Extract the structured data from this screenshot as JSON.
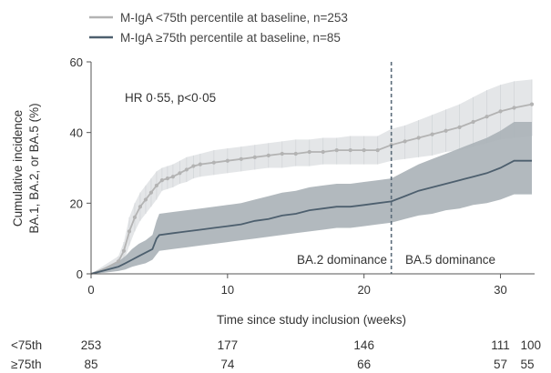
{
  "chart_data": {
    "type": "line",
    "title": "",
    "xlabel": "Time since study inclusion (weeks)",
    "ylabel_line1": "Cumulative incidence",
    "ylabel_line2": "BA.1, BA.2, or BA.5 (%)",
    "xlim": [
      0,
      32.5
    ],
    "ylim": [
      0,
      60
    ],
    "xticks": [
      0,
      10,
      20,
      30
    ],
    "yticks": [
      0,
      20,
      40,
      60
    ],
    "grid": false,
    "legend_position": "top-left",
    "annotation": "HR 0·55, p<0·05",
    "dominance_boundary_x": 22,
    "region_labels": [
      "BA.2 dominance",
      "BA.5 dominance"
    ],
    "series": [
      {
        "name": "M-IgA <75th percentile at baseline, n=253",
        "color": "#b3b3b3",
        "band_color": "#e3e5e7",
        "x": [
          0,
          1,
          2,
          2.4,
          2.8,
          3.2,
          3.6,
          4,
          4.4,
          4.8,
          5.2,
          5.6,
          6,
          6.5,
          7,
          7.5,
          8,
          9,
          10,
          11,
          12,
          13,
          14,
          15,
          16,
          17,
          18,
          19,
          20,
          21,
          22,
          23,
          24,
          25,
          26,
          27,
          28,
          29,
          30,
          31,
          32.3
        ],
        "y": [
          0,
          1.5,
          3.5,
          6.5,
          12,
          16,
          19,
          21,
          23,
          25,
          26.5,
          27,
          27.5,
          28.5,
          29.5,
          30.5,
          31,
          31.5,
          32,
          32.5,
          33,
          33.5,
          34,
          34,
          34.5,
          34.5,
          35,
          35,
          35,
          35,
          36.5,
          37.5,
          38.5,
          39.5,
          40.5,
          41.5,
          43,
          44.5,
          46,
          47,
          48
        ],
        "lower": [
          0,
          0.5,
          2,
          3.5,
          8,
          12,
          15,
          17,
          19,
          21,
          23.5,
          24,
          24.5,
          25.5,
          26,
          27,
          27.5,
          28,
          28.5,
          29,
          29.5,
          30,
          30,
          30.5,
          30.5,
          31,
          31,
          31,
          31,
          31,
          32,
          32.5,
          33,
          33.5,
          34.5,
          35,
          36,
          37,
          38,
          38.5,
          39
        ],
        "upper": [
          0,
          2.5,
          5,
          9,
          16,
          20,
          23,
          25,
          27,
          29,
          30,
          30.5,
          31,
          32,
          33,
          33.5,
          34,
          35,
          35.5,
          36,
          36.5,
          37,
          37.5,
          38,
          38,
          38.5,
          38.5,
          39,
          39,
          39,
          41,
          42,
          43.5,
          45,
          46.5,
          48,
          50,
          52,
          53.5,
          54.5,
          55
        ]
      },
      {
        "name": "M-IgA ≥75th percentile at baseline, n=85",
        "color": "#4d5f6e",
        "band_color": "#aab1b7",
        "x": [
          0,
          1,
          2,
          2.5,
          3,
          3.5,
          4,
          4.5,
          4.8,
          5,
          6,
          7,
          8,
          9,
          10,
          11,
          12,
          13,
          14,
          15,
          16,
          17,
          18,
          19,
          20,
          21,
          22,
          23,
          24,
          25,
          26,
          27,
          28,
          29,
          30,
          31,
          32.3
        ],
        "y": [
          0,
          1,
          2,
          3,
          4,
          5,
          6,
          7,
          10,
          11,
          11.5,
          12,
          12.5,
          13,
          13.5,
          14,
          15,
          15.5,
          16.5,
          17,
          18,
          18.5,
          19,
          19,
          19.5,
          20,
          20.5,
          22,
          23.5,
          24.5,
          25.5,
          26.5,
          27.5,
          28.5,
          30,
          32,
          32
        ],
        "lower": [
          0,
          0.3,
          0.8,
          1.2,
          2,
          2.5,
          3,
          4,
          5.5,
          6.5,
          7,
          7.5,
          8,
          8.5,
          9,
          9.5,
          10,
          10.5,
          11,
          11.5,
          12,
          12.5,
          13,
          13,
          13.5,
          14,
          14.5,
          15.5,
          16.5,
          17,
          18,
          18.5,
          19.5,
          20,
          21,
          22.5,
          22.5
        ],
        "upper": [
          0,
          1.8,
          3.5,
          5,
          7,
          8.5,
          9.5,
          11,
          15,
          17,
          17.5,
          18,
          18.5,
          19,
          19.5,
          20,
          21,
          22,
          23,
          23.5,
          24.5,
          25,
          25.5,
          25.5,
          26,
          26.5,
          27,
          29,
          31,
          32.5,
          34,
          35.5,
          37,
          38.5,
          40.5,
          43,
          43
        ]
      }
    ],
    "risk_table": {
      "x": [
        0,
        10,
        20,
        30,
        32
      ],
      "rows": [
        {
          "label": "<75th",
          "values": [
            "253",
            "177",
            "146",
            "111",
            "100"
          ]
        },
        {
          "label": "≥75th",
          "values": [
            "85",
            "74",
            "66",
            "57",
            "55"
          ]
        }
      ]
    }
  }
}
